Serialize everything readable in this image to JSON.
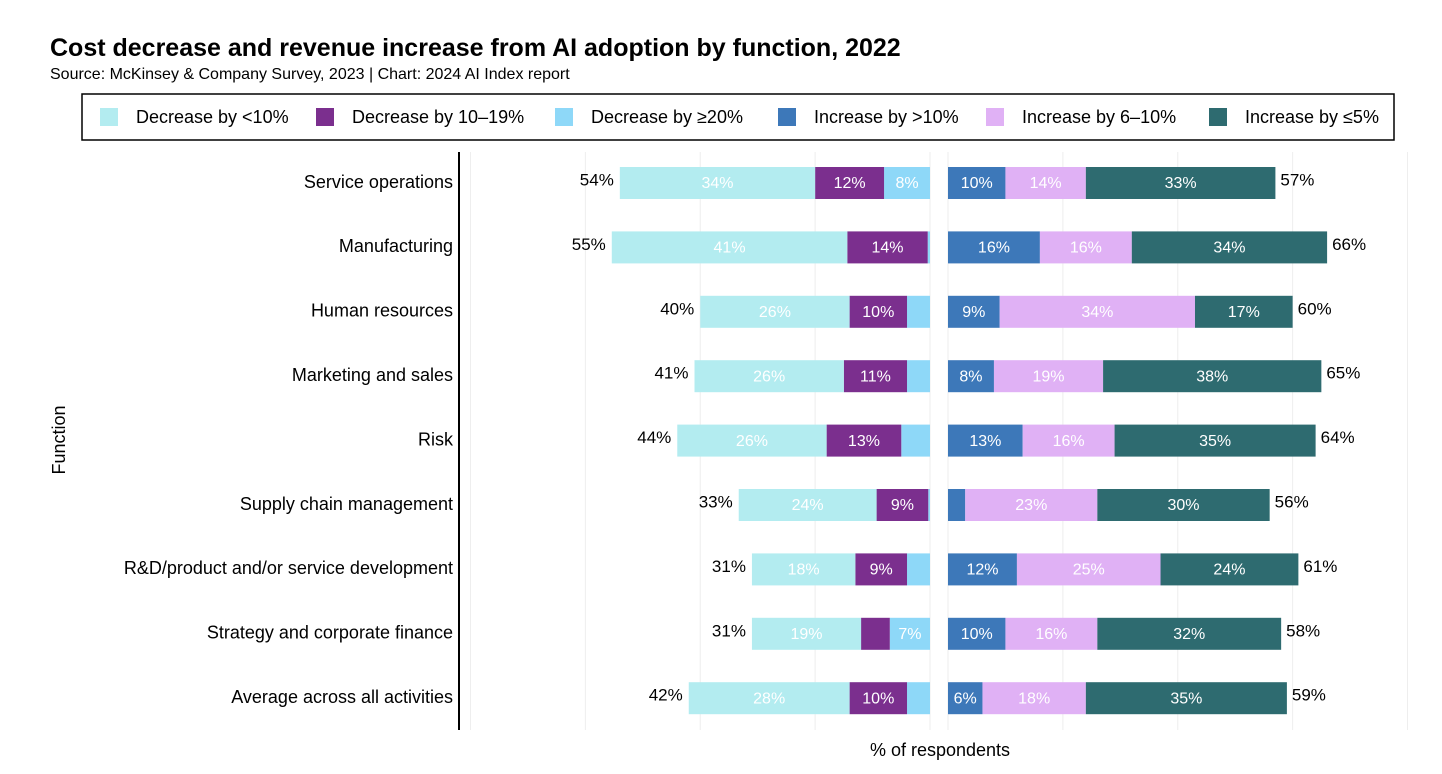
{
  "chart_data": {
    "type": "bar",
    "title": "Cost decrease and revenue increase from AI adoption by function, 2022",
    "subtitle": "Source: McKinsey & Company Survey, 2023 | Chart: 2024 AI Index report",
    "y_label": "Function",
    "x_label": "% of respondents",
    "categories": [
      "Service operations",
      "Manufacturing",
      "Human resources",
      "Marketing and sales",
      "Risk",
      "Supply chain management",
      "R&D/product and/or service development",
      "Strategy and corporate finance",
      "Average across all activities"
    ],
    "xlim": [
      0,
      82
    ],
    "xticks": [
      0,
      20,
      40,
      60,
      80
    ],
    "tick_labels": false,
    "grid": true,
    "series": [
      {
        "name": "Decrease by <10%",
        "side": "decrease",
        "color": "#b3ecf0",
        "values": [
          34,
          41,
          26,
          26,
          26,
          24,
          18,
          19,
          28
        ],
        "value_labels": [
          "34%",
          "41%",
          "26%",
          "26%",
          "26%",
          "24%",
          "18%",
          "19%",
          "28%"
        ]
      },
      {
        "name": "Decrease by 10–19%",
        "side": "decrease",
        "color": "#7b2f8e",
        "values": [
          12,
          14,
          10,
          11,
          13,
          9,
          9,
          5,
          10
        ],
        "value_labels": [
          "12%",
          "14%",
          "10%",
          "11%",
          "13%",
          "9%",
          "9%",
          null,
          "10%"
        ]
      },
      {
        "name": "Decrease by ≥20%",
        "side": "decrease",
        "color": "#8ed8f8",
        "values": [
          8,
          0.4,
          4,
          4,
          5,
          0.3,
          4,
          7,
          4
        ],
        "value_labels": [
          "8%",
          null,
          null,
          null,
          null,
          null,
          null,
          "7%",
          null
        ]
      },
      {
        "name": "Increase by >10%",
        "side": "increase",
        "color": "#3d78b9",
        "values": [
          10,
          16,
          9,
          8,
          13,
          3,
          12,
          10,
          6
        ],
        "value_labels": [
          "10%",
          "16%",
          "9%",
          "8%",
          "13%",
          null,
          "12%",
          "10%",
          "6%"
        ]
      },
      {
        "name": "Increase by 6–10%",
        "side": "increase",
        "color": "#e0b1f5",
        "values": [
          14,
          16,
          34,
          19,
          16,
          23,
          25,
          16,
          18
        ],
        "value_labels": [
          "14%",
          "16%",
          "34%",
          "19%",
          "16%",
          "23%",
          "25%",
          "16%",
          "18%"
        ]
      },
      {
        "name": "Increase by ≤5%",
        "side": "increase",
        "color": "#2e6b70",
        "values": [
          33,
          34,
          17,
          38,
          35,
          30,
          24,
          32,
          35
        ],
        "value_labels": [
          "33%",
          "34%",
          "17%",
          "38%",
          "35%",
          "30%",
          "24%",
          "32%",
          "35%"
        ]
      }
    ],
    "decrease_totals": {
      "values": [
        54,
        55,
        40,
        41,
        44,
        33,
        31,
        31,
        42
      ],
      "value_labels": [
        "54%",
        "55%",
        "40%",
        "41%",
        "44%",
        "33%",
        "31%",
        "31%",
        "42%"
      ]
    },
    "increase_totals": {
      "values": [
        57,
        66,
        60,
        65,
        64,
        56,
        61,
        58,
        59
      ],
      "value_labels": [
        "57%",
        "66%",
        "60%",
        "65%",
        "64%",
        "56%",
        "61%",
        "58%",
        "59%"
      ]
    }
  }
}
